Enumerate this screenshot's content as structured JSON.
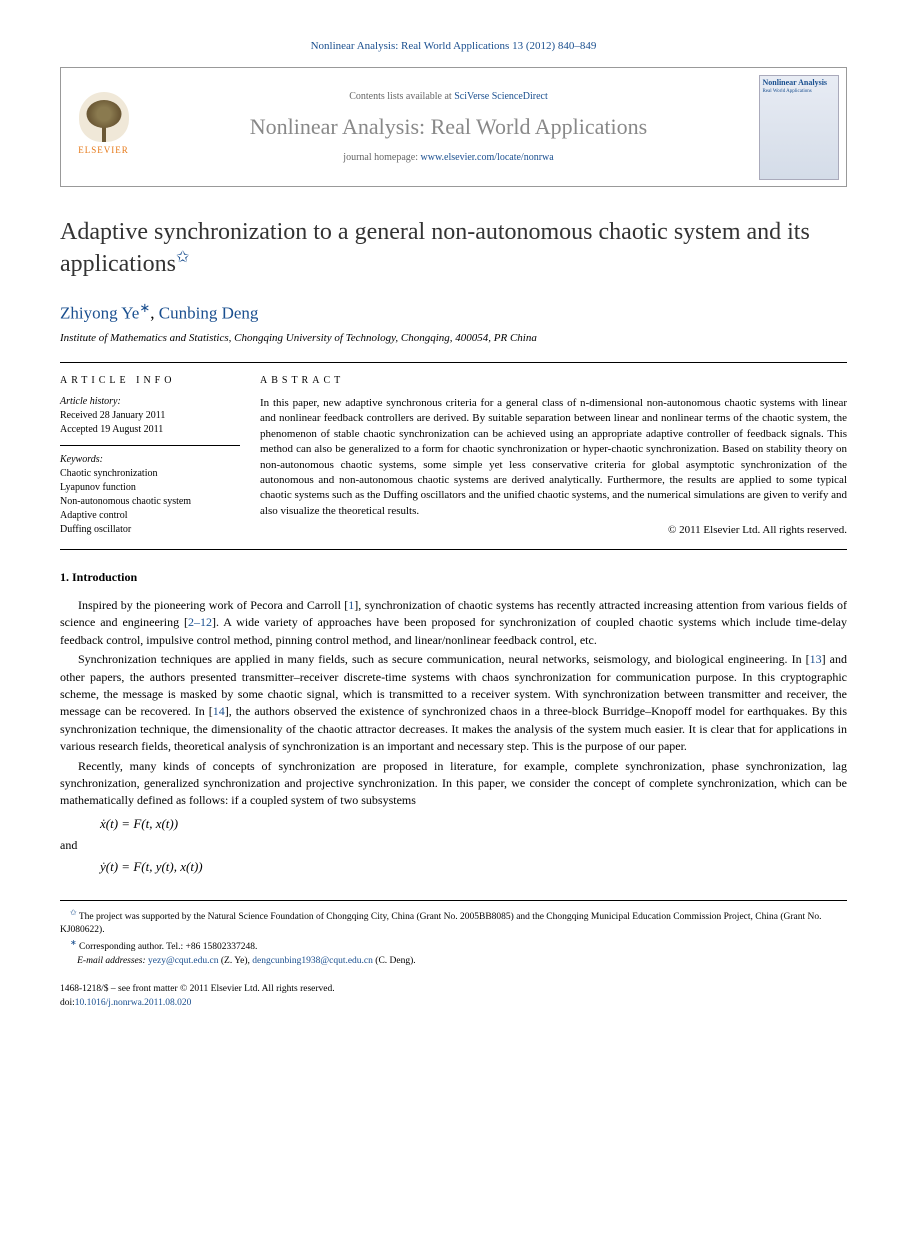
{
  "citation": "Nonlinear Analysis: Real World Applications 13 (2012) 840–849",
  "header": {
    "contents_prefix": "Contents lists available at ",
    "contents_link": "SciVerse ScienceDirect",
    "journal_name": "Nonlinear Analysis: Real World Applications",
    "homepage_prefix": "journal homepage: ",
    "homepage_link": "www.elsevier.com/locate/nonrwa",
    "publisher": "ELSEVIER",
    "cover_title": "Nonlinear Analysis",
    "cover_subtitle": "Real World Applications"
  },
  "title": "Adaptive synchronization to a general non-autonomous chaotic system and its applications",
  "authors": {
    "a1": "Zhiyong Ye",
    "a2": "Cunbing Deng"
  },
  "affiliation": "Institute of Mathematics and Statistics, Chongqing University of Technology, Chongqing, 400054, PR China",
  "info": {
    "header": "ARTICLE INFO",
    "history_label": "Article history:",
    "received": "Received 28 January 2011",
    "accepted": "Accepted 19 August 2011",
    "keywords_label": "Keywords:",
    "kw1": "Chaotic synchronization",
    "kw2": "Lyapunov function",
    "kw3": "Non-autonomous chaotic system",
    "kw4": "Adaptive control",
    "kw5": "Duffing oscillator"
  },
  "abstract": {
    "header": "ABSTRACT",
    "text": "In this paper, new adaptive synchronous criteria for a general class of n-dimensional non-autonomous chaotic systems with linear and nonlinear feedback controllers are derived. By suitable separation between linear and nonlinear terms of the chaotic system, the phenomenon of stable chaotic synchronization can be achieved using an appropriate adaptive controller of feedback signals. This method can also be generalized to a form for chaotic synchronization or hyper-chaotic synchronization. Based on stability theory on non-autonomous chaotic systems, some simple yet less conservative criteria for global asymptotic synchronization of the autonomous and non-autonomous chaotic systems are derived analytically. Furthermore, the results are applied to some typical chaotic systems such as the Duffing oscillators and the unified chaotic systems, and the numerical simulations are given to verify and also visualize the theoretical results.",
    "copyright": "© 2011 Elsevier Ltd. All rights reserved."
  },
  "intro": {
    "heading": "1.  Introduction",
    "p1a": "Inspired by the pioneering work of Pecora and Carroll [",
    "p1_ref1": "1",
    "p1b": "], synchronization of chaotic systems has recently attracted increasing attention from various fields of science and engineering [",
    "p1_ref2": "2–12",
    "p1c": "]. A wide variety of approaches have been proposed for synchronization of coupled chaotic systems which include time-delay feedback control, impulsive control method, pinning control method, and linear/nonlinear feedback control, etc.",
    "p2a": "Synchronization techniques are applied in many fields, such as secure communication, neural networks, seismology, and biological engineering. In [",
    "p2_ref1": "13",
    "p2b": "] and other papers, the authors presented transmitter–receiver discrete-time systems with chaos synchronization for communication purpose. In this cryptographic scheme, the message is masked by some chaotic signal, which is transmitted to a receiver system. With synchronization between transmitter and receiver, the message can be recovered. In [",
    "p2_ref2": "14",
    "p2c": "], the authors observed the existence of synchronized chaos in a three-block Burridge–Knopoff model for earthquakes. By this synchronization technique, the dimensionality of the chaotic attractor decreases. It makes the analysis of the system much easier. It is clear that for applications in various research fields, theoretical analysis of synchronization is an important and necessary step. This is the purpose of our paper.",
    "p3": "Recently, many kinds of concepts of synchronization are proposed in literature, for example, complete synchronization, phase synchronization, lag synchronization, generalized synchronization and projective synchronization. In this paper, we consider the concept of complete synchronization, which can be mathematically defined as follows: if a coupled system of two subsystems",
    "eq1": "ẋ(t) = F(t, x(t))",
    "and": "and",
    "eq2": "ẏ(t) = F(t, y(t), x(t))"
  },
  "footnotes": {
    "funding": "The project was supported by the Natural Science Foundation of Chongqing City, China (Grant No. 2005BB8085) and the Chongqing Municipal Education Commission Project, China (Grant No. KJ080622).",
    "corr": "Corresponding author. Tel.: +86 15802337248.",
    "email_label": "E-mail addresses: ",
    "email1": "yezy@cqut.edu.cn",
    "email1_name": " (Z. Ye), ",
    "email2": "dengcunbing1938@cqut.edu.cn",
    "email2_name": " (C. Deng)."
  },
  "bottom": {
    "issn": "1468-1218/$ – see front matter © 2011 Elsevier Ltd. All rights reserved.",
    "doi_label": "doi:",
    "doi": "10.1016/j.nonrwa.2011.08.020"
  }
}
